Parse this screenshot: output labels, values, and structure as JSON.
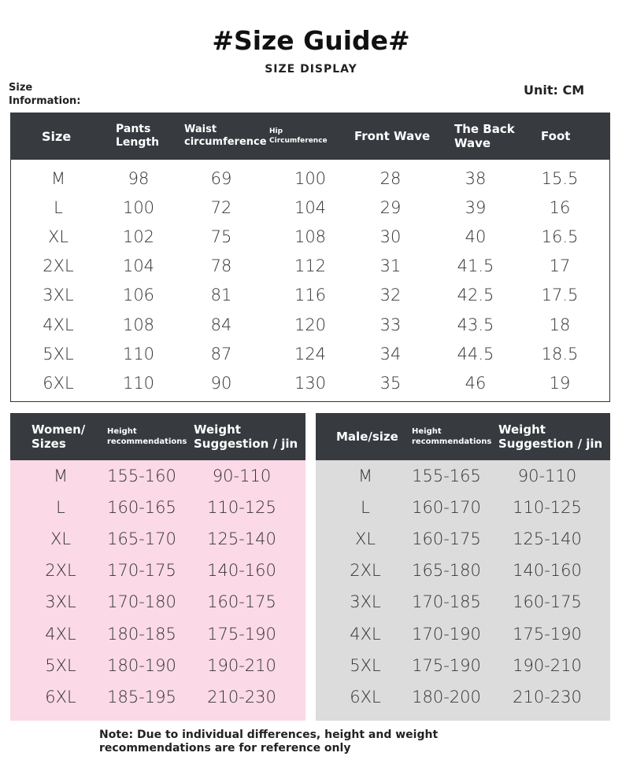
{
  "header": {
    "title": "#Size Guide#",
    "subtitle": "SIZE DISPLAY",
    "left_label": "Size Information:",
    "unit": "Unit: CM"
  },
  "size_table": {
    "columns": [
      "Size",
      "Pants Length",
      "Waist circumference",
      "Hip Circumference",
      "Front Wave",
      "The Back Wave",
      "Foot"
    ],
    "rows": [
      [
        "M",
        "98",
        "69",
        "100",
        "28",
        "38",
        "15.5"
      ],
      [
        "L",
        "100",
        "72",
        "104",
        "29",
        "39",
        "16"
      ],
      [
        "XL",
        "102",
        "75",
        "108",
        "30",
        "40",
        "16.5"
      ],
      [
        "2XL",
        "104",
        "78",
        "112",
        "31",
        "41.5",
        "17"
      ],
      [
        "3XL",
        "106",
        "81",
        "116",
        "32",
        "42.5",
        "17.5"
      ],
      [
        "4XL",
        "108",
        "84",
        "120",
        "33",
        "43.5",
        "18"
      ],
      [
        "5XL",
        "110",
        "87",
        "124",
        "34",
        "44.5",
        "18.5"
      ],
      [
        "6XL",
        "110",
        "90",
        "130",
        "35",
        "46",
        "19"
      ]
    ]
  },
  "women_table": {
    "columns": [
      "Women/ Sizes",
      "Height recommendations",
      "Weight Suggestion / jin"
    ],
    "rows": [
      [
        "M",
        "155-160",
        "90-110"
      ],
      [
        "L",
        "160-165",
        "110-125"
      ],
      [
        "XL",
        "165-170",
        "125-140"
      ],
      [
        "2XL",
        "170-175",
        "140-160"
      ],
      [
        "3XL",
        "170-180",
        "160-175"
      ],
      [
        "4XL",
        "180-185",
        "175-190"
      ],
      [
        "5XL",
        "180-190",
        "190-210"
      ],
      [
        "6XL",
        "185-195",
        "210-230"
      ]
    ]
  },
  "men_table": {
    "columns": [
      "Male/size",
      "Height recommendations",
      "Weight Suggestion / jin"
    ],
    "rows": [
      [
        "M",
        "155-165",
        "90-110"
      ],
      [
        "L",
        "160-170",
        "110-125"
      ],
      [
        "XL",
        "160-175",
        "125-140"
      ],
      [
        "2XL",
        "165-180",
        "140-160"
      ],
      [
        "3XL",
        "170-185",
        "160-175"
      ],
      [
        "4XL",
        "170-190",
        "175-190"
      ],
      [
        "5XL",
        "175-190",
        "190-210"
      ],
      [
        "6XL",
        "180-200",
        "210-230"
      ]
    ]
  },
  "note": "Note: Due to individual differences, height and weight recommendations are for reference only"
}
